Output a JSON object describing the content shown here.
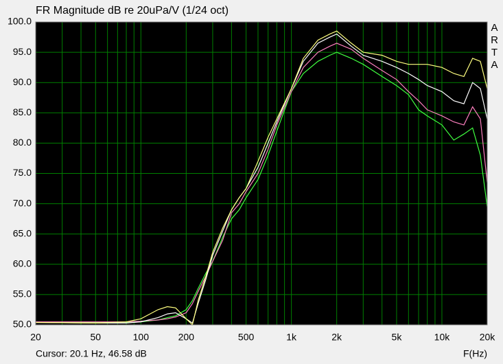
{
  "chart_data": {
    "type": "line",
    "title": "FR Magnitude dB re 20uPa/V (1/24 oct)",
    "xlabel": "F(Hz)",
    "status": "Cursor: 20.1 Hz, 46.58 dB",
    "watermark": "ARTA",
    "xscale": "log",
    "grid": true,
    "grid_color": "#008000",
    "background": "#000000",
    "xlim": [
      20,
      20000
    ],
    "ylim": [
      50,
      100
    ],
    "xticks": [
      20,
      50,
      100,
      200,
      500,
      {
        "value": 1000,
        "label": "1k"
      },
      {
        "value": 2000,
        "label": "2k"
      },
      {
        "value": 5000,
        "label": "5k"
      },
      {
        "value": 10000,
        "label": "10k"
      },
      {
        "value": 20000,
        "label": "20k"
      }
    ],
    "xminorticks": [
      30,
      40,
      60,
      70,
      80,
      90,
      300,
      400,
      600,
      700,
      800,
      900,
      3000,
      4000,
      6000,
      7000,
      8000,
      9000
    ],
    "yticks": [
      {
        "value": 50,
        "label": "50.0"
      },
      {
        "value": 55,
        "label": "55.0"
      },
      {
        "value": 60,
        "label": "60.0"
      },
      {
        "value": 65,
        "label": "65.0"
      },
      {
        "value": 70,
        "label": "70.0"
      },
      {
        "value": 75,
        "label": "75.0"
      },
      {
        "value": 80,
        "label": "80.0"
      },
      {
        "value": 85,
        "label": "85.0"
      },
      {
        "value": 90,
        "label": "90.0"
      },
      {
        "value": 95,
        "label": "95.0"
      },
      {
        "value": 100,
        "label": "100.0"
      }
    ],
    "x": [
      20,
      50,
      80,
      100,
      130,
      150,
      170,
      200,
      220,
      240,
      270,
      300,
      350,
      400,
      450,
      500,
      600,
      700,
      800,
      1000,
      1200,
      1500,
      1800,
      2000,
      2500,
      3000,
      4000,
      5000,
      6000,
      7000,
      8000,
      10000,
      12000,
      14000,
      16000,
      18000,
      20000
    ],
    "series": [
      {
        "color": "#40ff40",
        "values": [
          50.5,
          50.4,
          50.4,
          50.5,
          50.8,
          51.2,
          51.5,
          52.5,
          54,
          56,
          58.5,
          60.5,
          64.5,
          67.5,
          69,
          71,
          74,
          78,
          82,
          88.5,
          91.5,
          93.5,
          94.5,
          95,
          94,
          93,
          91,
          89.5,
          88,
          85.5,
          84.5,
          83,
          80.5,
          81.5,
          82.5,
          78,
          69.5
        ]
      },
      {
        "color": "#ff80c0",
        "values": [
          50.5,
          50.5,
          50.5,
          50.6,
          50.8,
          51,
          51.3,
          52,
          53.5,
          55.5,
          58,
          60.5,
          64,
          68.5,
          70,
          72,
          75,
          79,
          83,
          88.5,
          92.5,
          95,
          96,
          96.5,
          95.5,
          94,
          92,
          90.5,
          88.5,
          87,
          85.5,
          84.5,
          83.5,
          83,
          86,
          84,
          73.5
        ]
      },
      {
        "color": "#ffffff",
        "values": [
          50.4,
          50.3,
          50.3,
          50.5,
          51.2,
          51.8,
          52,
          51,
          50.3,
          53.5,
          57.5,
          61.5,
          65.5,
          69,
          71,
          72.5,
          76,
          80,
          83.5,
          89,
          93.5,
          96.5,
          97.5,
          98,
          96,
          94.5,
          93.5,
          92.5,
          91.5,
          90.5,
          89.5,
          88.5,
          87,
          86.5,
          90,
          89,
          84
        ]
      },
      {
        "color": "#ffff80",
        "values": [
          50.4,
          50.3,
          50.5,
          51,
          52.5,
          53,
          52.8,
          51,
          50,
          54,
          58,
          62,
          66,
          69,
          71,
          72.5,
          77,
          81,
          84,
          89,
          94,
          97,
          98,
          98.5,
          96.5,
          95,
          94.5,
          93.5,
          93,
          93,
          93,
          92.5,
          91.5,
          91,
          94,
          93.5,
          89
        ]
      }
    ]
  }
}
